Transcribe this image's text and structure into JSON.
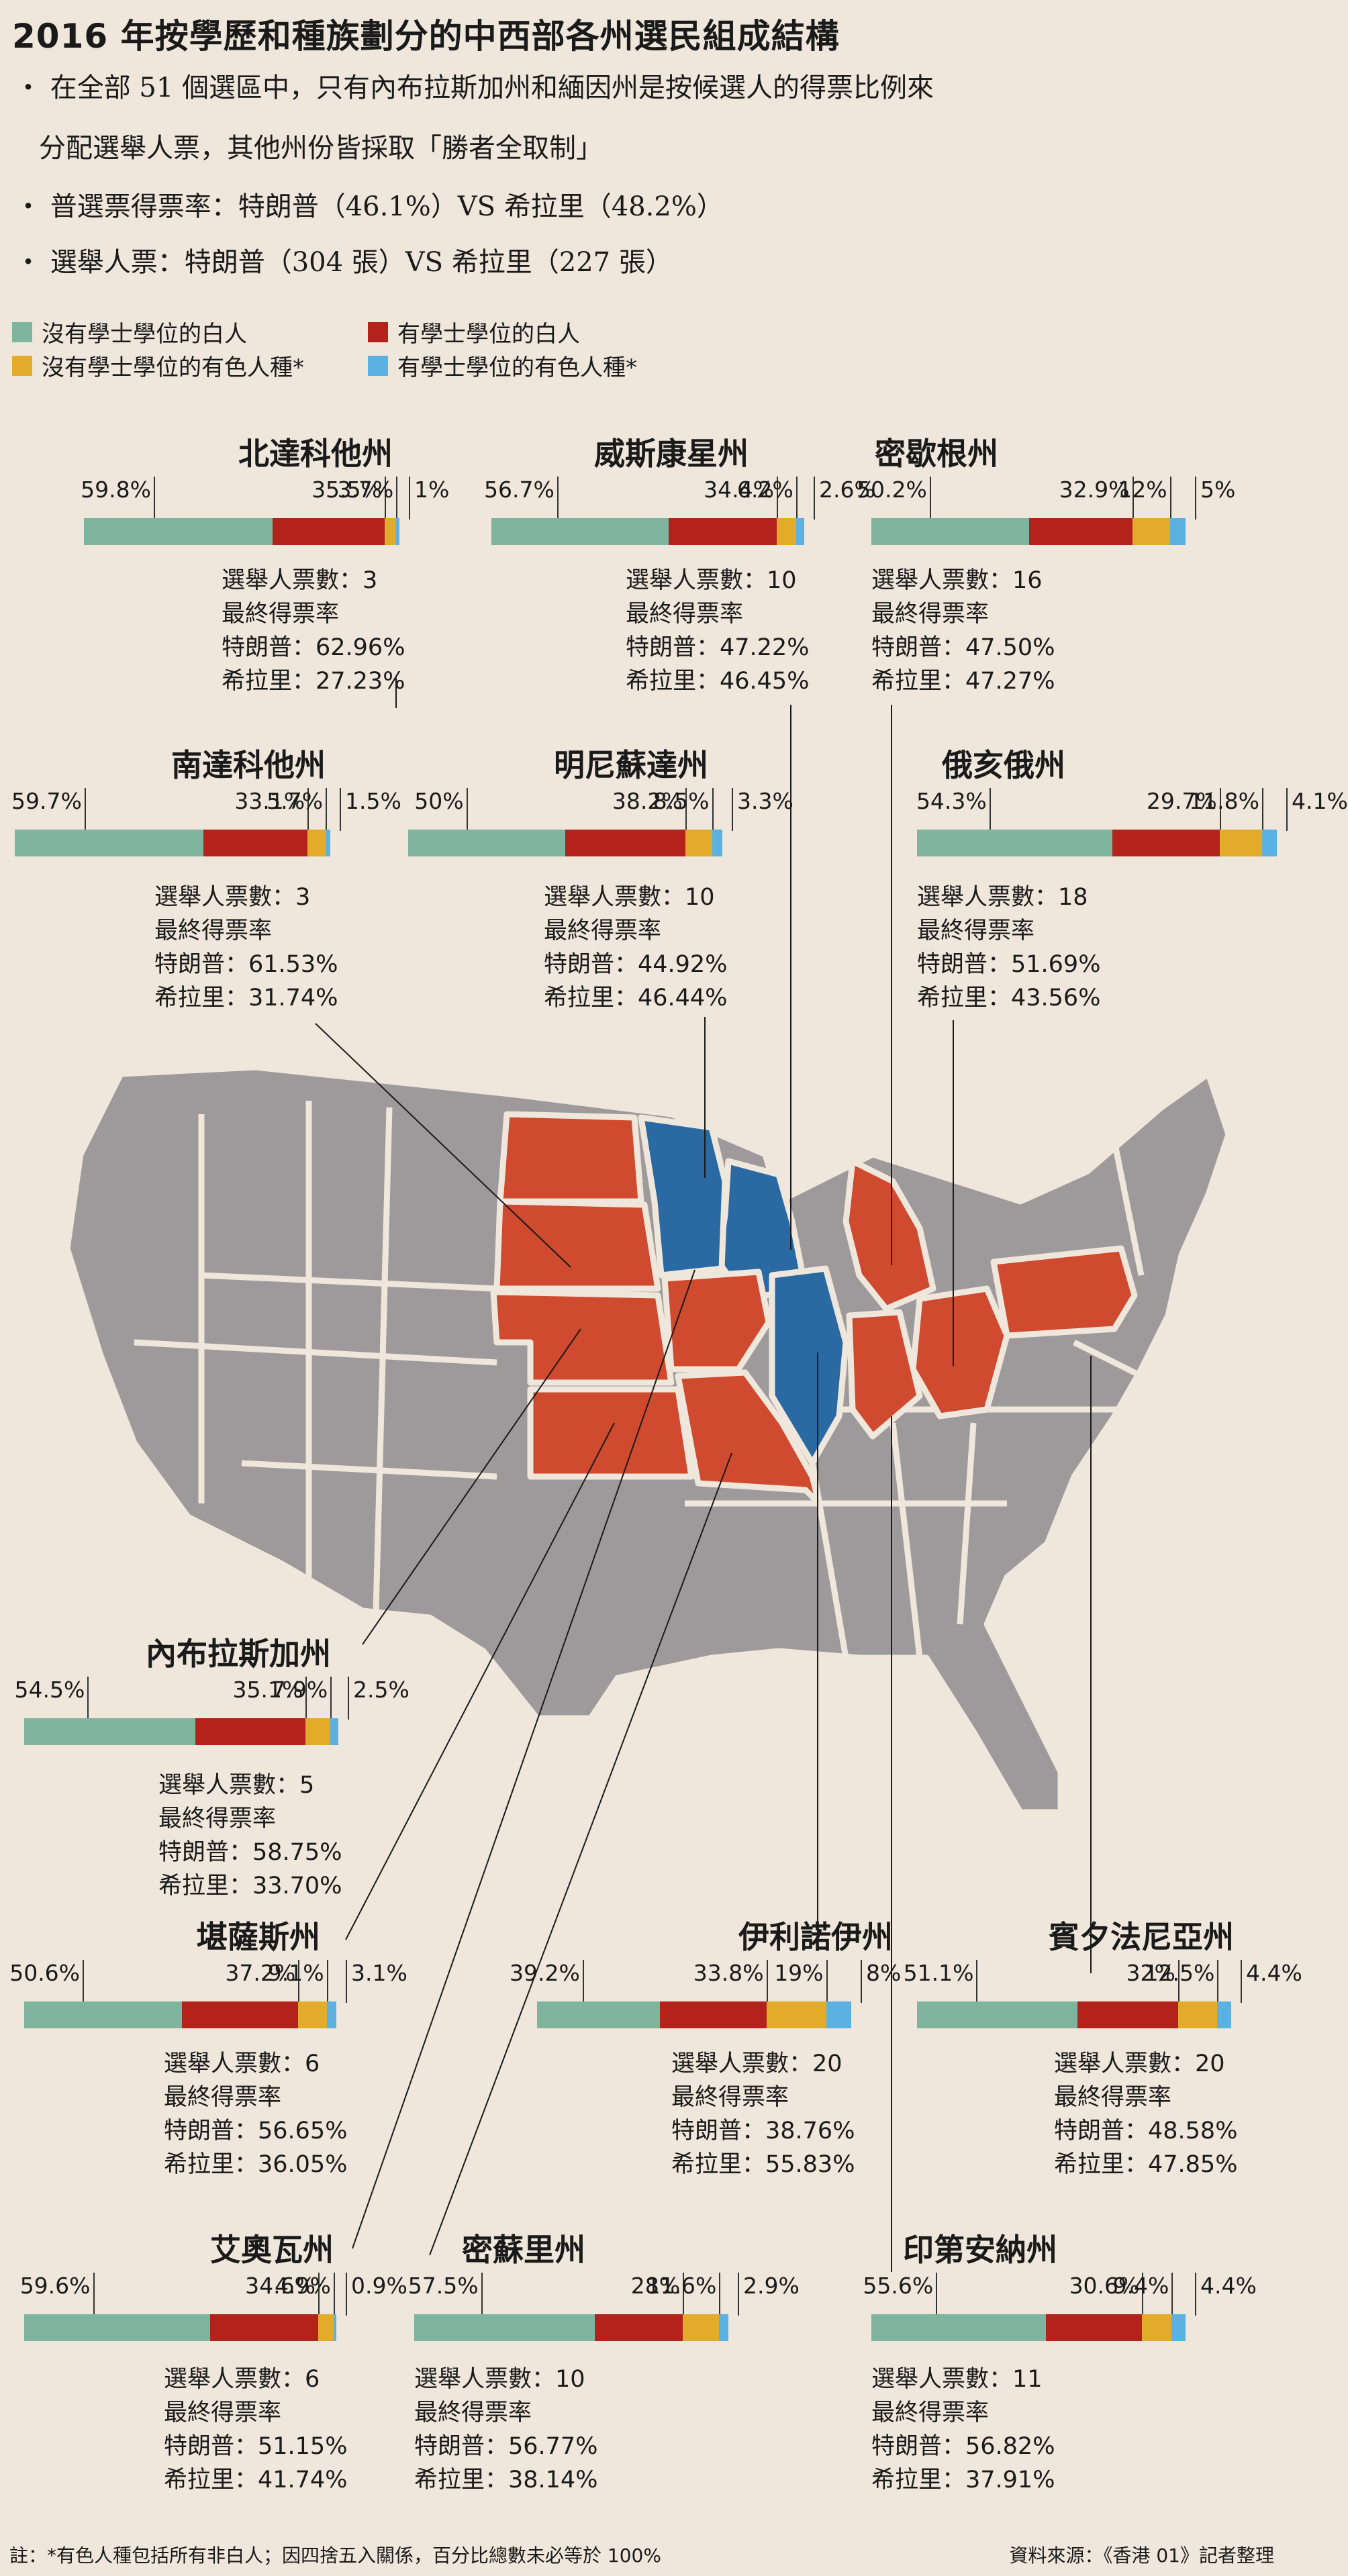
{
  "title": "2016 年按學歷和種族劃分的中西部各州選民組成結構",
  "bullets": [
    "‧ 在全部 51 個選區中，只有內布拉斯加州和緬因州是按候選人的得票比例來",
    "分配選舉人票，其他州份皆採取「勝者全取制」",
    "‧ 普選票得票率：特朗普（46.1%）VS 希拉里（48.2%）",
    "‧ 選舉人票：特朗普（304 張）VS 希拉里（227 張）"
  ],
  "legend": [
    {
      "label": "沒有學士學位的白人",
      "color": "#7fb59f"
    },
    {
      "label": "有學士學位的白人",
      "color": "#b3231c"
    },
    {
      "label": "沒有學士學位的有色人種*",
      "color": "#e3ab2a"
    },
    {
      "label": "有學士學位的有色人種*",
      "color": "#5bb2e2"
    }
  ],
  "info_labels": {
    "electoral": "選舉人票數：",
    "final": "最終得票率",
    "trump": "特朗普：",
    "clinton": "希拉里："
  },
  "map_colors": {
    "trump": "#cf4a2e",
    "clinton": "#2b69a3",
    "other": "#9e9a9c"
  },
  "footer": {
    "note": "註：*有色人種包括所有非白人；因四捨五入關係，百分比總數未必等於 100%",
    "source": "資料來源：《香港 01》記者整理"
  },
  "chart_data": {
    "type": "bar",
    "series_names": [
      "沒有學士學位的白人",
      "有學士學位的白人",
      "沒有學士學位的有色人種*",
      "有學士學位的有色人種*"
    ],
    "states": [
      {
        "name": "北達科他州",
        "values": [
          59.8,
          35.5,
          3.7,
          1
        ],
        "labels": [
          "59.8%",
          "35.5%",
          "3.7%",
          "1%"
        ],
        "electoral": "3",
        "trump": "62.96%",
        "clinton": "27.23%"
      },
      {
        "name": "威斯康星州",
        "values": [
          56.7,
          34.4,
          6.2,
          2.6
        ],
        "labels": [
          "56.7%",
          "34.4%",
          "6.2%",
          "2.6%"
        ],
        "electoral": "10",
        "trump": "47.22%",
        "clinton": "46.45%"
      },
      {
        "name": "密歇根州",
        "values": [
          50.2,
          32.9,
          12,
          5
        ],
        "labels": [
          "50.2%",
          "32.9%",
          "12%",
          "5%"
        ],
        "electoral": "16",
        "trump": "47.50%",
        "clinton": "47.27%"
      },
      {
        "name": "南達科他州",
        "values": [
          59.7,
          33.1,
          5.7,
          1.5
        ],
        "labels": [
          "59.7%",
          "33.1%",
          "5.7%",
          "1.5%"
        ],
        "electoral": "3",
        "trump": "61.53%",
        "clinton": "31.74%"
      },
      {
        "name": "明尼蘇達州",
        "values": [
          50,
          38.2,
          8.5,
          3.3
        ],
        "labels": [
          "50%",
          "38.2%",
          "8.5%",
          "3.3%"
        ],
        "electoral": "10",
        "trump": "44.92%",
        "clinton": "46.44%"
      },
      {
        "name": "俄亥俄州",
        "values": [
          54.3,
          29.7,
          11.8,
          4.1
        ],
        "labels": [
          "54.3%",
          "29.7%",
          "11.8%",
          "4.1%"
        ],
        "electoral": "18",
        "trump": "51.69%",
        "clinton": "43.56%"
      },
      {
        "name": "內布拉斯加州",
        "values": [
          54.5,
          35.1,
          7.9,
          2.5
        ],
        "labels": [
          "54.5%",
          "35.1%",
          "7.9%",
          "2.5%"
        ],
        "electoral": "5",
        "trump": "58.75%",
        "clinton": "33.70%"
      },
      {
        "name": "堪薩斯州",
        "values": [
          50.6,
          37.2,
          9.1,
          3.1
        ],
        "labels": [
          "50.6%",
          "37.2%",
          "9.1%",
          "3.1%"
        ],
        "electoral": "6",
        "trump": "56.65%",
        "clinton": "36.05%"
      },
      {
        "name": "伊利諾伊州",
        "values": [
          39.2,
          33.8,
          19,
          8
        ],
        "labels": [
          "39.2%",
          "33.8%",
          "19%",
          "8%"
        ],
        "electoral": "20",
        "trump": "38.76%",
        "clinton": "55.83%"
      },
      {
        "name": "賓夕法尼亞州",
        "values": [
          51.1,
          32,
          12.5,
          4.4
        ],
        "labels": [
          "51.1%",
          "32%",
          "12.5%",
          "4.4%"
        ],
        "electoral": "20",
        "trump": "48.58%",
        "clinton": "47.85%"
      },
      {
        "name": "艾奧瓦州",
        "values": [
          59.6,
          34.6,
          4.9,
          0.9
        ],
        "labels": [
          "59.6%",
          "34.6%",
          "4.9%",
          "0.9%"
        ],
        "electoral": "6",
        "trump": "51.15%",
        "clinton": "41.74%"
      },
      {
        "name": "密蘇里州",
        "values": [
          57.5,
          28,
          11.6,
          2.9
        ],
        "labels": [
          "57.5%",
          "28%",
          "11.6%",
          "2.9%"
        ],
        "electoral": "10",
        "trump": "56.77%",
        "clinton": "38.14%"
      },
      {
        "name": "印第安納州",
        "values": [
          55.6,
          30.6,
          9.4,
          4.4
        ],
        "labels": [
          "55.6%",
          "30.6%",
          "9.4%",
          "4.4%"
        ],
        "electoral": "11",
        "trump": "56.82%",
        "clinton": "37.91%"
      }
    ]
  }
}
